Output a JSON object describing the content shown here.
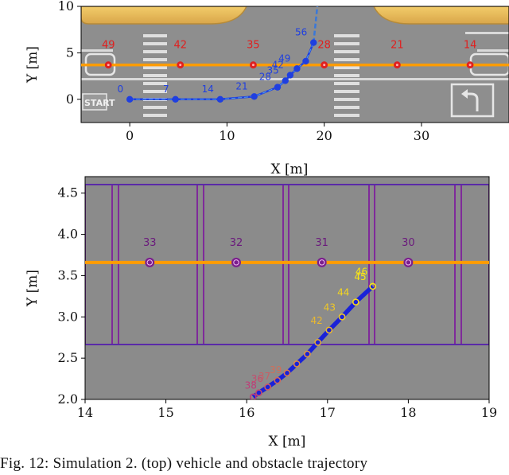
{
  "caption": "Fig. 12: Simulation 2. (top) vehicle and obstacle trajectory",
  "chart_data": [
    {
      "type": "line",
      "xlabel": "X [m]",
      "ylabel": "Y [m]",
      "xlim": [
        -5,
        39
      ],
      "ylim": [
        -2.5,
        10
      ],
      "xticks": [
        0,
        10,
        20,
        30
      ],
      "yticks": [
        0,
        5,
        10
      ],
      "series": [
        {
          "color": "#1f3fe0",
          "x": [
            0,
            4.7,
            9.3,
            12.8,
            15.2,
            16.0,
            16.5,
            17.2,
            18.1,
            18.9
          ],
          "y": [
            0,
            0,
            0,
            0.3,
            1.3,
            2.0,
            2.6,
            3.3,
            4.1,
            6.1
          ],
          "point_labels": [
            "0",
            "7",
            "14",
            "21",
            "28",
            "35",
            "42",
            "49",
            "",
            "56"
          ]
        },
        {
          "color": "#e0201f",
          "x": [
            -2.2,
            5.2,
            12.7,
            20.0,
            27.5,
            35.0
          ],
          "y": [
            3.7,
            3.7,
            3.7,
            3.7,
            3.7,
            3.7
          ],
          "point_labels": [
            "49",
            "42",
            "35",
            "28",
            "21",
            "14"
          ]
        }
      ]
    },
    {
      "type": "line",
      "xlabel": "X [m]",
      "ylabel": "Y [m]",
      "xlim": [
        14,
        19
      ],
      "ylim": [
        2.0,
        4.7
      ],
      "xticks": [
        14,
        15,
        16,
        17,
        18,
        19
      ],
      "yticks": [
        2.0,
        2.5,
        3.0,
        3.5,
        4.0,
        4.5
      ],
      "series": [
        {
          "color": "#2020e0",
          "x": [
            16.08,
            16.15,
            16.26,
            16.38,
            16.5,
            16.62,
            16.75,
            16.88,
            17.02,
            17.18,
            17.35,
            17.56
          ],
          "y": [
            2.03,
            2.08,
            2.15,
            2.23,
            2.32,
            2.43,
            2.55,
            2.69,
            2.84,
            3.0,
            3.18,
            3.37
          ],
          "point_labels": [
            "",
            "",
            "",
            "",
            "",
            "",
            "",
            "",
            "42",
            "43",
            "44",
            "45"
          ],
          "extra_labels": [
            "38",
            "36",
            "37",
            "39",
            "",
            "",
            "",
            "46"
          ]
        },
        {
          "color": "#7a1f8c",
          "x": [
            18.0,
            16.93,
            15.87,
            14.8
          ],
          "y": [
            3.66,
            3.66,
            3.66,
            3.66
          ],
          "point_labels": [
            "30",
            "31",
            "32",
            "33"
          ]
        }
      ]
    }
  ]
}
